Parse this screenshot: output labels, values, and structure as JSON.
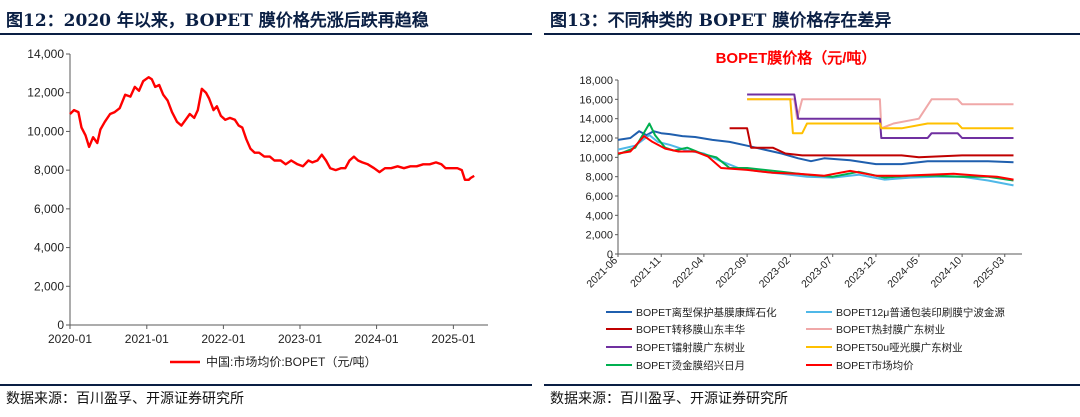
{
  "left": {
    "fig_title": "图12：2020 年以来，BOPET 膜价格先涨后跌再趋稳",
    "source": "数据来源：百川盈孚、开源证券研究所",
    "chart_data": {
      "type": "line",
      "title": "",
      "xlabel": "",
      "ylabel": "",
      "ylim": [
        0,
        14000
      ],
      "yticks": [
        "0",
        "2,000",
        "4,000",
        "6,000",
        "8,000",
        "10,000",
        "12,000",
        "14,000"
      ],
      "xticks": [
        "2020-01",
        "2021-01",
        "2022-01",
        "2023-01",
        "2024-01",
        "2025-01"
      ],
      "grid": false,
      "legend_position": "bottom",
      "series": [
        {
          "name": "中国:市场均价:BOPET（元/吨）",
          "color": "#ff0000",
          "points": [
            [
              "2020-01-01",
              10900
            ],
            [
              "2020-01-20",
              11100
            ],
            [
              "2020-02-10",
              11000
            ],
            [
              "2020-02-25",
              10200
            ],
            [
              "2020-03-15",
              9800
            ],
            [
              "2020-04-01",
              9200
            ],
            [
              "2020-04-20",
              9700
            ],
            [
              "2020-05-10",
              9400
            ],
            [
              "2020-05-25",
              10100
            ],
            [
              "2020-06-15",
              10500
            ],
            [
              "2020-07-10",
              10900
            ],
            [
              "2020-08-01",
              11000
            ],
            [
              "2020-08-25",
              11200
            ],
            [
              "2020-09-20",
              11900
            ],
            [
              "2020-10-15",
              11800
            ],
            [
              "2020-11-05",
              12300
            ],
            [
              "2020-11-25",
              12100
            ],
            [
              "2020-12-15",
              12600
            ],
            [
              "2021-01-10",
              12800
            ],
            [
              "2021-01-25",
              12700
            ],
            [
              "2021-02-10",
              12300
            ],
            [
              "2021-03-01",
              12400
            ],
            [
              "2021-03-20",
              11900
            ],
            [
              "2021-04-10",
              11600
            ],
            [
              "2021-05-01",
              11000
            ],
            [
              "2021-05-25",
              10500
            ],
            [
              "2021-06-15",
              10300
            ],
            [
              "2021-07-05",
              10600
            ],
            [
              "2021-07-25",
              10900
            ],
            [
              "2021-08-15",
              10700
            ],
            [
              "2021-09-01",
              11100
            ],
            [
              "2021-09-20",
              12200
            ],
            [
              "2021-10-10",
              12000
            ],
            [
              "2021-10-25",
              11700
            ],
            [
              "2021-11-15",
              11100
            ],
            [
              "2021-12-01",
              11300
            ],
            [
              "2021-12-20",
              10800
            ],
            [
              "2022-01-10",
              10600
            ],
            [
              "2022-02-01",
              10700
            ],
            [
              "2022-02-25",
              10600
            ],
            [
              "2022-03-15",
              10300
            ],
            [
              "2022-04-01",
              10200
            ],
            [
              "2022-04-20",
              9600
            ],
            [
              "2022-05-10",
              9100
            ],
            [
              "2022-05-30",
              8900
            ],
            [
              "2022-06-20",
              8900
            ],
            [
              "2022-07-15",
              8700
            ],
            [
              "2022-08-10",
              8700
            ],
            [
              "2022-09-01",
              8500
            ],
            [
              "2022-10-01",
              8500
            ],
            [
              "2022-10-25",
              8300
            ],
            [
              "2022-11-20",
              8500
            ],
            [
              "2022-12-20",
              8300
            ],
            [
              "2023-01-15",
              8200
            ],
            [
              "2023-02-10",
              8500
            ],
            [
              "2023-03-01",
              8400
            ],
            [
              "2023-03-25",
              8500
            ],
            [
              "2023-04-15",
              8800
            ],
            [
              "2023-05-05",
              8500
            ],
            [
              "2023-05-25",
              8100
            ],
            [
              "2023-06-20",
              8000
            ],
            [
              "2023-07-15",
              8100
            ],
            [
              "2023-08-05",
              8100
            ],
            [
              "2023-08-25",
              8500
            ],
            [
              "2023-09-15",
              8700
            ],
            [
              "2023-10-05",
              8500
            ],
            [
              "2023-10-25",
              8400
            ],
            [
              "2023-11-20",
              8300
            ],
            [
              "2023-12-20",
              8100
            ],
            [
              "2024-01-15",
              7900
            ],
            [
              "2024-02-10",
              8100
            ],
            [
              "2024-03-10",
              8100
            ],
            [
              "2024-04-10",
              8200
            ],
            [
              "2024-05-10",
              8100
            ],
            [
              "2024-06-10",
              8200
            ],
            [
              "2024-07-10",
              8200
            ],
            [
              "2024-08-10",
              8300
            ],
            [
              "2024-09-10",
              8300
            ],
            [
              "2024-10-10",
              8400
            ],
            [
              "2024-11-05",
              8300
            ],
            [
              "2024-11-25",
              8100
            ],
            [
              "2024-12-20",
              8100
            ],
            [
              "2025-01-20",
              8100
            ],
            [
              "2025-02-10",
              8000
            ],
            [
              "2025-02-25",
              7500
            ],
            [
              "2025-03-15",
              7500
            ],
            [
              "2025-03-25",
              7600
            ],
            [
              "2025-04-10",
              7700
            ]
          ]
        }
      ]
    }
  },
  "right": {
    "fig_title": "图13：不同种类的 BOPET 膜价格存在差异",
    "source": "数据来源：百川盈孚、开源证券研究所",
    "chart_data": {
      "type": "line",
      "title": "BOPET膜价格（元/吨）",
      "xlabel": "",
      "ylabel": "",
      "ylim": [
        0,
        18000
      ],
      "yticks": [
        "0",
        "2,000",
        "4,000",
        "6,000",
        "8,000",
        "10,000",
        "12,000",
        "14,000",
        "16,000",
        "18,000"
      ],
      "xticks": [
        "2021-06",
        "2021-11",
        "2022-04",
        "2022-09",
        "2023-02",
        "2023-07",
        "2023-12",
        "2024-05",
        "2024-10",
        "2025-03"
      ],
      "grid": false,
      "legend_position": "bottom",
      "series": [
        {
          "name": "BOPET离型保护基膜康辉石化",
          "color": "#1f5fae",
          "points": [
            [
              "2021-06-01",
              11800
            ],
            [
              "2021-07-15",
              12000
            ],
            [
              "2021-08-15",
              12700
            ],
            [
              "2021-09-10",
              12300
            ],
            [
              "2021-10-05",
              12700
            ],
            [
              "2021-11-01",
              12500
            ],
            [
              "2021-12-01",
              12400
            ],
            [
              "2022-01-15",
              12200
            ],
            [
              "2022-03-01",
              12100
            ],
            [
              "2022-05-01",
              11800
            ],
            [
              "2022-07-01",
              11600
            ],
            [
              "2022-09-01",
              11200
            ],
            [
              "2022-11-01",
              10800
            ],
            [
              "2023-01-01",
              10400
            ],
            [
              "2023-03-01",
              9900
            ],
            [
              "2023-04-15",
              9600
            ],
            [
              "2023-06-01",
              9900
            ],
            [
              "2023-09-01",
              9700
            ],
            [
              "2023-12-01",
              9300
            ],
            [
              "2024-03-01",
              9300
            ],
            [
              "2024-06-01",
              9600
            ],
            [
              "2024-10-01",
              9600
            ],
            [
              "2025-01-01",
              9600
            ],
            [
              "2025-04-01",
              9500
            ]
          ]
        },
        {
          "name": "BOPET12μ普通包装印刷膜宁波金源",
          "color": "#4fb8e8",
          "points": [
            [
              "2021-06-01",
              10800
            ],
            [
              "2021-08-01",
              11200
            ],
            [
              "2021-09-20",
              12300
            ],
            [
              "2021-10-20",
              11600
            ],
            [
              "2021-12-01",
              11300
            ],
            [
              "2022-02-01",
              10700
            ],
            [
              "2022-04-01",
              10400
            ],
            [
              "2022-06-01",
              9600
            ],
            [
              "2022-08-01",
              8900
            ],
            [
              "2022-10-01",
              8600
            ],
            [
              "2023-01-01",
              8300
            ],
            [
              "2023-04-01",
              8000
            ],
            [
              "2023-07-01",
              7900
            ],
            [
              "2023-10-01",
              8200
            ],
            [
              "2024-01-01",
              7700
            ],
            [
              "2024-04-01",
              7900
            ],
            [
              "2024-07-01",
              8000
            ],
            [
              "2024-10-01",
              8000
            ],
            [
              "2025-01-01",
              7600
            ],
            [
              "2025-04-01",
              7100
            ]
          ]
        },
        {
          "name": "BOPET转移膜山东丰华",
          "color": "#c00000",
          "points": [
            [
              "2022-07-01",
              13000
            ],
            [
              "2022-09-01",
              13000
            ],
            [
              "2022-09-15",
              11000
            ],
            [
              "2022-12-01",
              11000
            ],
            [
              "2023-01-15",
              10400
            ],
            [
              "2023-03-15",
              10200
            ],
            [
              "2024-03-01",
              10200
            ],
            [
              "2024-05-01",
              10000
            ],
            [
              "2024-10-01",
              10200
            ],
            [
              "2025-04-01",
              10200
            ]
          ]
        },
        {
          "name": "BOPET热封膜广东树业",
          "color": "#f0a8a8",
          "points": [
            [
              "2022-09-01",
              16000
            ],
            [
              "2023-02-15",
              16000
            ],
            [
              "2023-02-25",
              14000
            ],
            [
              "2023-03-15",
              16000
            ],
            [
              "2023-12-15",
              16000
            ],
            [
              "2023-12-20",
              13000
            ],
            [
              "2024-02-01",
              13500
            ],
            [
              "2024-05-01",
              14000
            ],
            [
              "2024-06-15",
              16000
            ],
            [
              "2024-09-15",
              16000
            ],
            [
              "2024-10-01",
              15500
            ],
            [
              "2025-04-01",
              15500
            ]
          ]
        },
        {
          "name": "BOPET镭射膜广东树业",
          "color": "#7030a0",
          "points": [
            [
              "2022-09-01",
              16500
            ],
            [
              "2023-02-15",
              16500
            ],
            [
              "2023-03-01",
              14000
            ],
            [
              "2023-12-15",
              14000
            ],
            [
              "2023-12-20",
              12000
            ],
            [
              "2024-06-01",
              12000
            ],
            [
              "2024-06-15",
              12500
            ],
            [
              "2024-09-15",
              12500
            ],
            [
              "2024-10-01",
              12000
            ],
            [
              "2025-04-01",
              12000
            ]
          ]
        },
        {
          "name": "BOPET50u哑光膜广东树业",
          "color": "#ffc000",
          "points": [
            [
              "2022-09-01",
              16000
            ],
            [
              "2023-02-01",
              16000
            ],
            [
              "2023-02-10",
              12500
            ],
            [
              "2023-03-15",
              12500
            ],
            [
              "2023-04-01",
              13500
            ],
            [
              "2023-12-15",
              13500
            ],
            [
              "2023-12-20",
              13000
            ],
            [
              "2024-03-01",
              13000
            ],
            [
              "2024-06-01",
              13500
            ],
            [
              "2024-09-15",
              13500
            ],
            [
              "2024-10-01",
              13000
            ],
            [
              "2025-04-01",
              13000
            ]
          ]
        },
        {
          "name": "BOPET烫金膜绍兴日月",
          "color": "#00b050",
          "points": [
            [
              "2021-06-01",
              10300
            ],
            [
              "2021-08-01",
              11000
            ],
            [
              "2021-09-20",
              13500
            ],
            [
              "2021-10-10",
              12300
            ],
            [
              "2021-11-15",
              11000
            ],
            [
              "2021-12-15",
              10700
            ],
            [
              "2022-02-01",
              11000
            ],
            [
              "2022-04-01",
              10300
            ],
            [
              "2022-05-15",
              10000
            ],
            [
              "2022-07-01",
              8900
            ],
            [
              "2022-09-01",
              8900
            ],
            [
              "2023-01-01",
              8500
            ],
            [
              "2023-04-01",
              8200
            ],
            [
              "2023-07-01",
              8000
            ],
            [
              "2023-10-01",
              8500
            ],
            [
              "2024-01-01",
              7900
            ],
            [
              "2024-04-01",
              8100
            ],
            [
              "2024-07-01",
              8100
            ],
            [
              "2024-10-01",
              8000
            ],
            [
              "2025-01-01",
              8000
            ],
            [
              "2025-04-01",
              7600
            ]
          ]
        },
        {
          "name": "BOPET市场均价",
          "color": "#ff0000",
          "points": [
            [
              "2021-06-01",
              10400
            ],
            [
              "2021-07-15",
              10600
            ],
            [
              "2021-09-01",
              12200
            ],
            [
              "2021-10-01",
              11600
            ],
            [
              "2021-11-15",
              10900
            ],
            [
              "2022-01-01",
              10600
            ],
            [
              "2022-03-01",
              10600
            ],
            [
              "2022-04-15",
              10100
            ],
            [
              "2022-06-01",
              8900
            ],
            [
              "2022-09-01",
              8700
            ],
            [
              "2022-12-01",
              8400
            ],
            [
              "2023-03-01",
              8300
            ],
            [
              "2023-06-01",
              8100
            ],
            [
              "2023-09-01",
              8600
            ],
            [
              "2023-12-01",
              8100
            ],
            [
              "2024-03-01",
              8100
            ],
            [
              "2024-06-01",
              8200
            ],
            [
              "2024-09-01",
              8300
            ],
            [
              "2024-12-01",
              8100
            ],
            [
              "2025-02-01",
              8000
            ],
            [
              "2025-04-01",
              7700
            ]
          ]
        }
      ]
    }
  }
}
